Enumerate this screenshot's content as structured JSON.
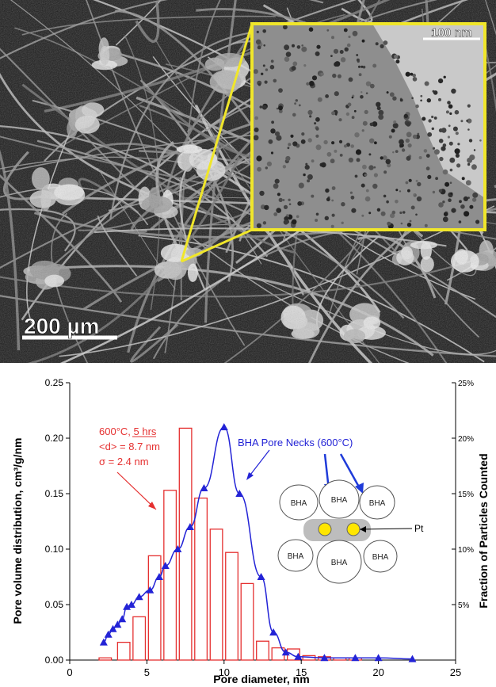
{
  "micrograph": {
    "scale_bar_main": "200 µm",
    "scale_bar_inset": "100 nm",
    "colors": {
      "inset_border": "#f0e62a",
      "background": "#1a1a1a"
    }
  },
  "chart_data": {
    "type": "bar",
    "xlabel": "Pore diameter, nm",
    "ylabel": "Pore volume distribution, cm³/g/nm",
    "y2label": "Fraction of Particles Counted",
    "xlim": [
      0,
      25
    ],
    "ylim": [
      0,
      0.25
    ],
    "y2lim": [
      0,
      25
    ],
    "x_ticks": [
      "0",
      "5",
      "10",
      "15",
      "20",
      "25"
    ],
    "y_ticks": [
      "0.00",
      "0.05",
      "0.10",
      "0.15",
      "0.20",
      "0.25"
    ],
    "y2_ticks": [
      "5%",
      "10%",
      "15%",
      "20%",
      "25%"
    ],
    "bars": {
      "color": "#e53030",
      "width": 0.8,
      "x": [
        2.3,
        3.5,
        4.5,
        5.5,
        6.5,
        7.5,
        8.5,
        9.5,
        10.5,
        11.5,
        12.5,
        13.5,
        14.5,
        15.5,
        16.5,
        17.5,
        18.5
      ],
      "values": [
        0.002,
        0.016,
        0.039,
        0.094,
        0.153,
        0.209,
        0.146,
        0.118,
        0.097,
        0.069,
        0.017,
        0.011,
        0.01,
        0.004,
        0.003,
        0.002,
        0.002
      ]
    },
    "line": {
      "color": "#2323d6",
      "x": [
        2.2,
        2.5,
        2.8,
        3.1,
        3.4,
        3.7,
        4.0,
        4.5,
        5.2,
        5.8,
        6.2,
        7.0,
        7.8,
        8.7,
        10.0,
        11.0,
        12.4,
        13.2,
        14.0,
        14.8,
        16.5,
        18.5,
        20.0,
        22.2
      ],
      "values": [
        0.016,
        0.023,
        0.028,
        0.032,
        0.037,
        0.048,
        0.05,
        0.057,
        0.063,
        0.075,
        0.085,
        0.1,
        0.12,
        0.155,
        0.21,
        0.15,
        0.075,
        0.025,
        0.007,
        0.003,
        0.002,
        0.002,
        0.002,
        0.001
      ]
    },
    "annotations": {
      "bar_label": [
        "600°C, 5 hrs",
        "<d> = 8.7 nm",
        "σ = 2.4 nm"
      ],
      "line_label": "BHA Pore Necks (600°C)"
    },
    "diagram": {
      "particle_label": "BHA",
      "metal_label": "Pt",
      "colors": {
        "metal": "#ffe600",
        "neck_shade": "#bdbdbd"
      }
    },
    "grid": false
  }
}
